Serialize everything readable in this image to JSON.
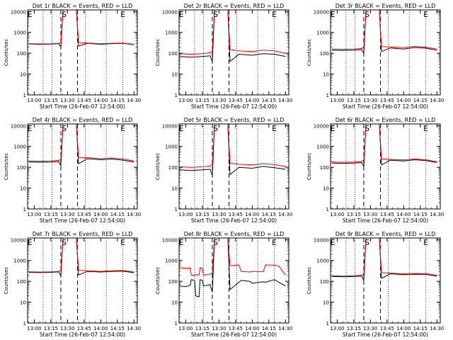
{
  "colors": {
    "events": "#000000",
    "lld": "#ff0000",
    "axis": "#000000"
  },
  "common": {
    "ylabel": "Counts/sec",
    "xlabel": "Start Time (26-Feb-07 12:54:00)",
    "x_ticks": [
      "13:00",
      "13:15",
      "13:30",
      "13:45",
      "14:00",
      "14:15",
      "14:30"
    ],
    "y_ticks": [
      "1",
      "10",
      "100",
      "1000",
      "10000"
    ],
    "markers": [
      {
        "label": "E",
        "x": "12:56"
      },
      {
        "label": "S",
        "x": "13:27"
      },
      {
        "label": "E",
        "x": "14:20"
      }
    ],
    "dashed_lines_x": [
      "13:24",
      "13:39"
    ],
    "dotted_lines_x": [
      "13:08",
      "13:16",
      "13:46",
      "14:05",
      "14:20"
    ]
  },
  "chart_data": [
    {
      "type": "line",
      "title": "Det 1r BLACK = Events, RED = LLD",
      "xlim": [
        "12:54",
        "14:33"
      ],
      "ylim": [
        1,
        12000
      ],
      "yscale": "log",
      "x": [
        "12:55",
        "13:05",
        "13:15",
        "13:22",
        "13:24",
        "13:26",
        "13:38",
        "13:40",
        "13:48",
        "14:00",
        "14:10",
        "14:20",
        "14:30"
      ],
      "series": [
        {
          "values": [
            280,
            270,
            275,
            290,
            200,
            12000,
            12000,
            220,
            300,
            270,
            290,
            300,
            260
          ]
        },
        {
          "values": [
            290,
            280,
            285,
            300,
            320,
            12000,
            12000,
            330,
            310,
            285,
            300,
            310,
            270
          ]
        }
      ]
    },
    {
      "type": "line",
      "title": "Det 2r BLACK = Events, RED = LLD",
      "xlim": [
        "12:54",
        "14:33"
      ],
      "ylim": [
        1,
        12000
      ],
      "yscale": "log",
      "x": [
        "12:55",
        "13:05",
        "13:15",
        "13:22",
        "13:24",
        "13:26",
        "13:38",
        "13:40",
        "13:48",
        "14:00",
        "14:10",
        "14:20",
        "14:30"
      ],
      "series": [
        {
          "values": [
            70,
            65,
            70,
            75,
            40,
            12000,
            12000,
            40,
            90,
            80,
            95,
            90,
            70
          ]
        },
        {
          "values": [
            95,
            90,
            95,
            105,
            140,
            12000,
            12000,
            150,
            130,
            120,
            140,
            130,
            100
          ]
        }
      ]
    },
    {
      "type": "line",
      "title": "Det 3r BLACK = Events, RED = LLD",
      "xlim": [
        "12:54",
        "14:33"
      ],
      "ylim": [
        1,
        12000
      ],
      "yscale": "log",
      "x": [
        "12:55",
        "13:05",
        "13:15",
        "13:22",
        "13:24",
        "13:26",
        "13:38",
        "13:40",
        "13:48",
        "14:00",
        "14:10",
        "14:20",
        "14:30"
      ],
      "series": [
        {
          "values": [
            140,
            135,
            140,
            150,
            100,
            12000,
            12000,
            120,
            180,
            160,
            190,
            175,
            140
          ]
        },
        {
          "values": [
            160,
            155,
            160,
            170,
            200,
            12000,
            12000,
            210,
            200,
            185,
            215,
            195,
            160
          ]
        }
      ]
    },
    {
      "type": "line",
      "title": "Det 4r BLACK = Events, RED = LLD",
      "xlim": [
        "12:54",
        "14:33"
      ],
      "ylim": [
        1,
        12000
      ],
      "yscale": "log",
      "x": [
        "12:55",
        "13:05",
        "13:15",
        "13:22",
        "13:24",
        "13:26",
        "13:38",
        "13:40",
        "13:48",
        "14:00",
        "14:10",
        "14:20",
        "14:30"
      ],
      "series": [
        {
          "values": [
            180,
            175,
            180,
            190,
            120,
            12000,
            12000,
            150,
            260,
            230,
            250,
            220,
            180
          ]
        },
        {
          "values": [
            200,
            195,
            200,
            215,
            240,
            12000,
            12000,
            300,
            290,
            260,
            280,
            250,
            200
          ]
        }
      ]
    },
    {
      "type": "line",
      "title": "Det 5r BLACK = Events, RED = LLD",
      "xlim": [
        "12:54",
        "14:33"
      ],
      "ylim": [
        1,
        12000
      ],
      "yscale": "log",
      "x": [
        "12:55",
        "13:05",
        "13:15",
        "13:22",
        "13:24",
        "13:26",
        "13:38",
        "13:40",
        "13:48",
        "14:00",
        "14:10",
        "14:20",
        "14:30"
      ],
      "series": [
        {
          "values": [
            75,
            70,
            75,
            80,
            40,
            12000,
            12000,
            45,
            100,
            90,
            110,
            95,
            80
          ]
        },
        {
          "values": [
            105,
            100,
            105,
            115,
            140,
            12000,
            12000,
            160,
            140,
            130,
            150,
            135,
            110
          ]
        }
      ]
    },
    {
      "type": "line",
      "title": "Det 6r BLACK = Events, RED = LLD",
      "xlim": [
        "12:54",
        "14:33"
      ],
      "ylim": [
        1,
        12000
      ],
      "yscale": "log",
      "x": [
        "12:55",
        "13:05",
        "13:15",
        "13:22",
        "13:24",
        "13:26",
        "13:38",
        "13:40",
        "13:48",
        "14:00",
        "14:10",
        "14:20",
        "14:30"
      ],
      "series": [
        {
          "values": [
            160,
            155,
            160,
            170,
            110,
            12000,
            12000,
            130,
            220,
            200,
            230,
            210,
            170
          ]
        },
        {
          "values": [
            180,
            175,
            180,
            190,
            220,
            12000,
            12000,
            250,
            240,
            225,
            250,
            230,
            185
          ]
        }
      ]
    },
    {
      "type": "line",
      "title": "Det 7r BLACK = Events, RED = LLD",
      "xlim": [
        "12:54",
        "14:33"
      ],
      "ylim": [
        1,
        12000
      ],
      "yscale": "log",
      "x": [
        "12:55",
        "13:05",
        "13:15",
        "13:22",
        "13:24",
        "13:26",
        "13:38",
        "13:40",
        "13:48",
        "14:00",
        "14:10",
        "14:20",
        "14:30"
      ],
      "series": [
        {
          "values": [
            270,
            265,
            270,
            285,
            180,
            12000,
            12000,
            200,
            300,
            280,
            300,
            310,
            260
          ]
        },
        {
          "values": [
            285,
            280,
            285,
            300,
            330,
            12000,
            12000,
            340,
            320,
            300,
            320,
            330,
            280
          ]
        }
      ]
    },
    {
      "type": "line",
      "title": "Det 8r BLACK = Events, RED = LLD",
      "xlim": [
        "12:54",
        "14:33"
      ],
      "ylim": [
        1,
        12000
      ],
      "yscale": "log",
      "x": [
        "12:55",
        "13:00",
        "13:04",
        "13:05",
        "13:08",
        "13:09",
        "13:12",
        "13:13",
        "13:15",
        "13:16",
        "13:22",
        "13:24",
        "13:26",
        "13:38",
        "13:40",
        "13:48",
        "13:50",
        "13:58",
        "14:00",
        "14:10",
        "14:12",
        "14:20",
        "14:24",
        "14:30"
      ],
      "series": [
        {
          "values": [
            60,
            55,
            65,
            120,
            110,
            20,
            18,
            120,
            110,
            60,
            70,
            30,
            12000,
            12000,
            40,
            90,
            110,
            100,
            80,
            95,
            90,
            120,
            90,
            60
          ]
        },
        {
          "values": [
            450,
            420,
            430,
            200,
            190,
            210,
            200,
            450,
            430,
            200,
            220,
            260,
            12000,
            12000,
            560,
            620,
            300,
            280,
            300,
            290,
            620,
            600,
            550,
            200
          ]
        }
      ]
    },
    {
      "type": "line",
      "title": "Det 9r BLACK = Events, RED = LLD",
      "xlim": [
        "12:54",
        "14:33"
      ],
      "ylim": [
        1,
        12000
      ],
      "yscale": "log",
      "x": [
        "12:55",
        "13:05",
        "13:15",
        "13:22",
        "13:24",
        "13:26",
        "13:38",
        "13:40",
        "13:48",
        "14:00",
        "14:10",
        "14:20",
        "14:30"
      ],
      "series": [
        {
          "values": [
            170,
            165,
            170,
            180,
            110,
            12000,
            12000,
            140,
            230,
            210,
            220,
            215,
            180
          ]
        },
        {
          "values": [
            185,
            180,
            185,
            195,
            230,
            12000,
            12000,
            260,
            250,
            230,
            240,
            235,
            195
          ]
        }
      ]
    }
  ]
}
